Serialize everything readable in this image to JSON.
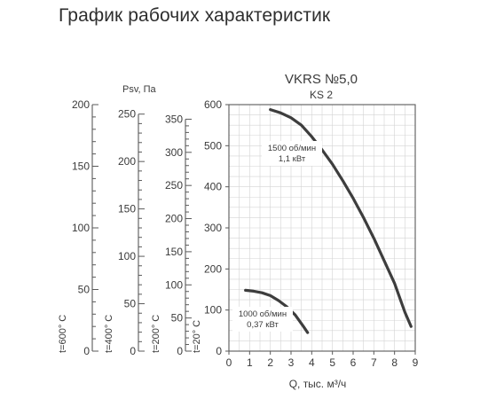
{
  "page": {
    "title": "График рабочих характеристик"
  },
  "chart_data": {
    "type": "line",
    "title": "VKRS №5,0",
    "subtitle": "KS 2",
    "xlabel": "Q, тыс. м³/ч",
    "ylabel": "Psv, Па",
    "xlim": [
      0,
      9
    ],
    "ylim": [
      0,
      600
    ],
    "x_ticks": [
      "0",
      "1",
      "2",
      "3",
      "4",
      "5",
      "6",
      "7",
      "8",
      "9"
    ],
    "y_ticks": [
      "0",
      "100",
      "200",
      "300",
      "400",
      "500",
      "600"
    ],
    "grid": true,
    "series": [
      {
        "label_line1": "1500 об/мин",
        "label_line2": "1,1 кВт",
        "x": [
          2.0,
          2.5,
          3.0,
          3.5,
          4.0,
          4.5,
          5.0,
          5.5,
          6.0,
          6.5,
          7.0,
          7.5,
          8.0,
          8.5,
          8.8
        ],
        "y": [
          588,
          580,
          568,
          550,
          522,
          490,
          455,
          415,
          372,
          325,
          275,
          220,
          165,
          95,
          60
        ]
      },
      {
        "label_line1": "1000 об/мин",
        "label_line2": "0,37 кВт",
        "x": [
          0.8,
          1.2,
          1.6,
          2.0,
          2.4,
          2.8,
          3.2,
          3.6,
          3.8
        ],
        "y": [
          148,
          146,
          142,
          135,
          123,
          108,
          88,
          60,
          45
        ]
      }
    ],
    "temperature_scales": [
      {
        "label": "t=600° С",
        "ticks": [
          "0",
          "50",
          "100",
          "150",
          "200"
        ],
        "ylim": [
          0,
          200
        ]
      },
      {
        "label": "t=400° С",
        "ticks": [
          "0",
          "50",
          "100",
          "150",
          "200",
          "250"
        ],
        "ylim": [
          0,
          260
        ]
      },
      {
        "label": "t=200° С",
        "ticks": [
          "0",
          "50",
          "100",
          "150",
          "200",
          "250",
          "300",
          "350"
        ],
        "ylim": [
          0,
          372
        ]
      },
      {
        "label": "t=20° С",
        "ticks": [],
        "ylim": [
          0,
          600
        ]
      }
    ]
  }
}
